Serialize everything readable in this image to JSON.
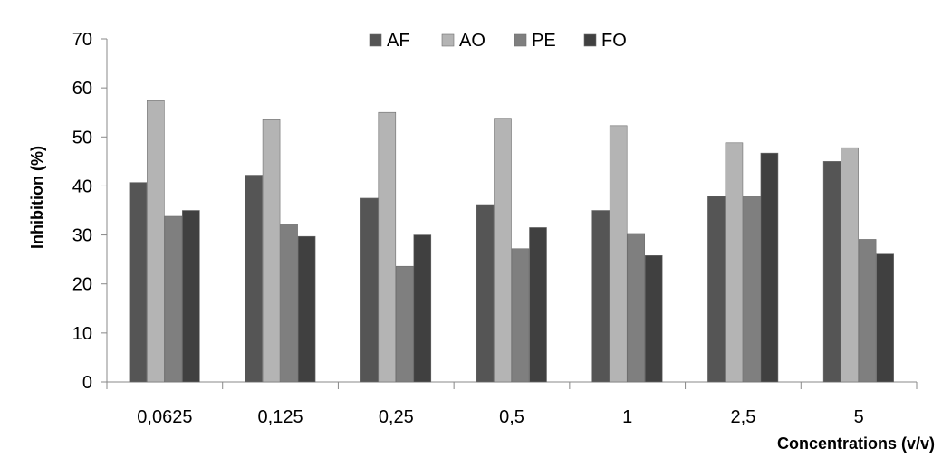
{
  "chart_data": {
    "type": "bar",
    "title": "",
    "xlabel": "Concentrations (v/v)",
    "ylabel": "Inhibition (%)",
    "ylim": [
      0,
      70
    ],
    "yticks": [
      "0",
      "10",
      "20",
      "30",
      "40",
      "50",
      "60",
      "70"
    ],
    "grid": false,
    "legend_position": "top-center",
    "categories": [
      "0,0625",
      "0,125",
      "0,25",
      "0,5",
      "1",
      "2,5",
      "5"
    ],
    "series": [
      {
        "name": "AF",
        "color": "#555555",
        "values": [
          40.7,
          42.2,
          37.5,
          36.2,
          35.0,
          37.9,
          45.0
        ]
      },
      {
        "name": "AO",
        "color": "#b4b4b4",
        "values": [
          57.4,
          53.5,
          55.0,
          53.8,
          52.3,
          48.8,
          47.8
        ]
      },
      {
        "name": "PE",
        "color": "#7f7f7f",
        "values": [
          33.8,
          32.2,
          23.6,
          27.2,
          30.3,
          37.9,
          29.1
        ]
      },
      {
        "name": "FO",
        "color": "#404040",
        "values": [
          35.0,
          29.7,
          30.0,
          31.5,
          25.8,
          46.7,
          26.1
        ]
      }
    ]
  }
}
